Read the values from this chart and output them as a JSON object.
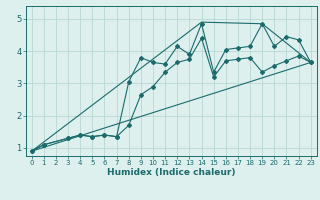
{
  "xlabel": "Humidex (Indice chaleur)",
  "bg_color": "#ddf0ee",
  "grid_color": "#b8d8d4",
  "line_color": "#1a6b6b",
  "xlim": [
    -0.5,
    23.5
  ],
  "ylim": [
    0.75,
    5.4
  ],
  "xticks": [
    0,
    1,
    2,
    3,
    4,
    5,
    6,
    7,
    8,
    9,
    10,
    11,
    12,
    13,
    14,
    15,
    16,
    17,
    18,
    19,
    20,
    21,
    22,
    23
  ],
  "yticks": [
    1,
    2,
    3,
    4,
    5
  ],
  "series": [
    {
      "x": [
        0,
        1,
        3,
        4,
        5,
        6,
        7,
        8,
        9,
        10,
        11,
        12,
        13,
        14,
        15,
        16,
        17,
        18,
        19,
        20,
        21,
        22,
        23
      ],
      "y": [
        0.9,
        1.1,
        1.3,
        1.4,
        1.35,
        1.4,
        1.35,
        3.05,
        3.8,
        3.65,
        3.6,
        4.15,
        3.9,
        4.85,
        3.35,
        4.05,
        4.1,
        4.15,
        4.85,
        4.15,
        4.45,
        4.35,
        3.65
      ]
    },
    {
      "x": [
        0,
        1,
        3,
        4,
        5,
        6,
        7,
        8,
        9,
        10,
        11,
        12,
        13,
        14,
        15,
        16,
        17,
        18,
        19,
        20,
        21,
        22,
        23
      ],
      "y": [
        0.9,
        1.1,
        1.3,
        1.4,
        1.35,
        1.4,
        1.35,
        1.7,
        2.65,
        2.9,
        3.35,
        3.65,
        3.75,
        4.4,
        3.2,
        3.7,
        3.75,
        3.8,
        3.35,
        3.55,
        3.7,
        3.85,
        3.65
      ]
    },
    {
      "x": [
        0,
        23
      ],
      "y": [
        0.9,
        3.65
      ]
    },
    {
      "x": [
        0,
        14,
        19,
        23
      ],
      "y": [
        0.9,
        4.9,
        4.85,
        3.65
      ]
    }
  ]
}
